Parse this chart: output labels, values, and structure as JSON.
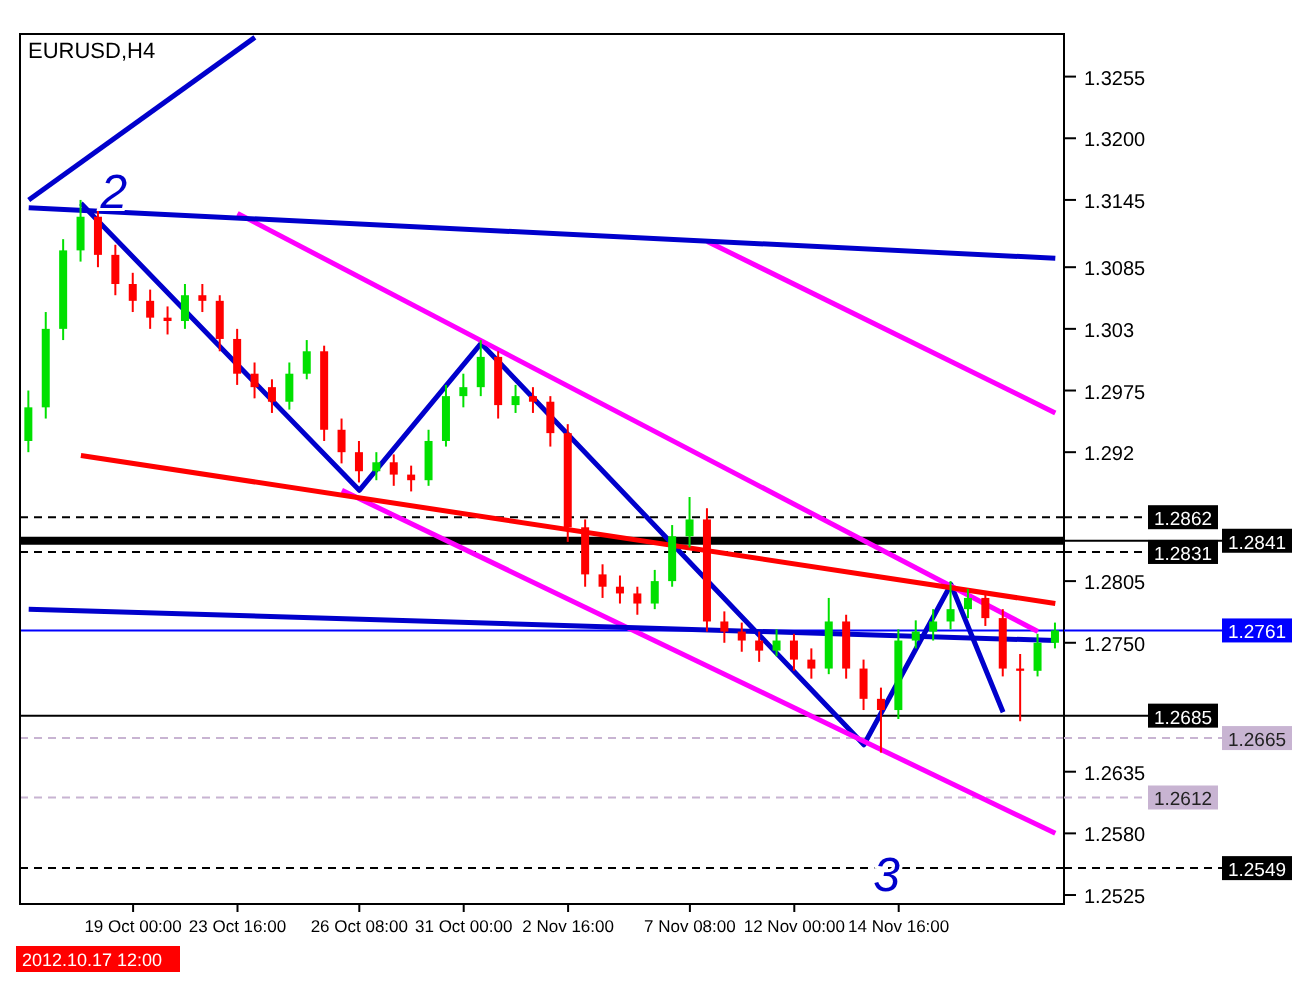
{
  "chart_data": {
    "type": "candlestick",
    "title": "EURUSD,H4",
    "categories": [
      null,
      null,
      null,
      null,
      null,
      null,
      "19 Oct 00:00",
      null,
      null,
      null,
      null,
      null,
      "23 Oct 16:00",
      null,
      null,
      null,
      null,
      null,
      null,
      "26 Oct 08:00",
      null,
      null,
      null,
      null,
      null,
      "31 Oct 00:00",
      null,
      null,
      null,
      null,
      null,
      "2 Nov 16:00",
      null,
      null,
      null,
      null,
      null,
      null,
      "7 Nov 08:00",
      null,
      null,
      null,
      null,
      null,
      "12 Nov 00:00",
      null,
      null,
      null,
      null,
      null,
      "14 Nov 16:00",
      null,
      null,
      null,
      null,
      null,
      null,
      null,
      null,
      null
    ],
    "ohlc": [
      [
        1.293,
        1.2975,
        1.292,
        1.296
      ],
      [
        1.296,
        1.3045,
        1.295,
        1.303
      ],
      [
        1.303,
        1.311,
        1.302,
        1.31
      ],
      [
        1.31,
        1.3145,
        1.309,
        1.313
      ],
      [
        1.313,
        1.3138,
        1.3085,
        1.3096
      ],
      [
        1.3096,
        1.3105,
        1.306,
        1.307
      ],
      [
        1.307,
        1.308,
        1.3045,
        1.3055
      ],
      [
        1.3055,
        1.3065,
        1.303,
        1.304
      ],
      [
        1.304,
        1.305,
        1.3025,
        1.3037
      ],
      [
        1.3037,
        1.307,
        1.303,
        1.306
      ],
      [
        1.306,
        1.307,
        1.3045,
        1.3055
      ],
      [
        1.3055,
        1.306,
        1.301,
        1.3021
      ],
      [
        1.3021,
        1.303,
        1.298,
        1.299
      ],
      [
        1.299,
        1.3,
        1.2968,
        1.2978
      ],
      [
        1.2978,
        1.2985,
        1.2955,
        1.2965
      ],
      [
        1.2965,
        1.3,
        1.2958,
        1.299
      ],
      [
        1.299,
        1.302,
        1.2985,
        1.301
      ],
      [
        1.301,
        1.3015,
        1.293,
        1.294
      ],
      [
        1.294,
        1.295,
        1.291,
        1.292
      ],
      [
        1.292,
        1.293,
        1.2893,
        1.2903
      ],
      [
        1.2903,
        1.292,
        1.2895,
        1.2911
      ],
      [
        1.2911,
        1.2918,
        1.289,
        1.29
      ],
      [
        1.29,
        1.2908,
        1.2885,
        1.2895
      ],
      [
        1.2895,
        1.294,
        1.289,
        1.293
      ],
      [
        1.293,
        1.298,
        1.2925,
        1.297
      ],
      [
        1.297,
        1.299,
        1.296,
        1.2978
      ],
      [
        1.2978,
        1.302,
        1.297,
        1.3005
      ],
      [
        1.3005,
        1.301,
        1.295,
        1.2962
      ],
      [
        1.2962,
        1.298,
        1.2955,
        1.297
      ],
      [
        1.297,
        1.2978,
        1.2955,
        1.2965
      ],
      [
        1.2965,
        1.297,
        1.2925,
        1.2937
      ],
      [
        1.2937,
        1.2945,
        1.284,
        1.2853
      ],
      [
        1.2853,
        1.286,
        1.28,
        1.2811
      ],
      [
        1.2811,
        1.282,
        1.279,
        1.28
      ],
      [
        1.28,
        1.281,
        1.2785,
        1.2794
      ],
      [
        1.2794,
        1.28,
        1.2775,
        1.2785
      ],
      [
        1.2785,
        1.2815,
        1.278,
        1.2805
      ],
      [
        1.2805,
        1.2855,
        1.28,
        1.2845
      ],
      [
        1.2845,
        1.288,
        1.2835,
        1.286
      ],
      [
        1.286,
        1.287,
        1.276,
        1.2769
      ],
      [
        1.2769,
        1.2778,
        1.275,
        1.276
      ],
      [
        1.276,
        1.2768,
        1.2742,
        1.2752
      ],
      [
        1.2752,
        1.276,
        1.2733,
        1.2743
      ],
      [
        1.2743,
        1.2762,
        1.2738,
        1.2752
      ],
      [
        1.2752,
        1.2758,
        1.2725,
        1.2735
      ],
      [
        1.2735,
        1.2745,
        1.2718,
        1.2727
      ],
      [
        1.2727,
        1.279,
        1.2722,
        1.2769
      ],
      [
        1.2769,
        1.2775,
        1.2718,
        1.2727
      ],
      [
        1.2727,
        1.2735,
        1.269,
        1.27
      ],
      [
        1.27,
        1.271,
        1.2652,
        1.269
      ],
      [
        1.269,
        1.2762,
        1.2682,
        1.2752
      ],
      [
        1.2752,
        1.277,
        1.2745,
        1.276
      ],
      [
        1.276,
        1.278,
        1.2752,
        1.2769
      ],
      [
        1.2769,
        1.2805,
        1.2762,
        1.278
      ],
      [
        1.278,
        1.2798,
        1.2772,
        1.279
      ],
      [
        1.279,
        1.2795,
        1.2765,
        1.2772
      ],
      [
        1.2772,
        1.278,
        1.272,
        1.2727
      ],
      [
        1.2727,
        1.274,
        1.268,
        1.2725
      ],
      [
        1.2725,
        1.2758,
        1.272,
        1.275
      ],
      [
        1.275,
        1.2768,
        1.2745,
        1.2761
      ]
    ],
    "colors": [
      "#00e000",
      "#00e000",
      "#00e000",
      "#00e000",
      "#ff0000",
      "#ff0000",
      "#ff0000",
      "#ff0000",
      "#ff0000",
      "#00e000",
      "#ff0000",
      "#ff0000",
      "#ff0000",
      "#ff0000",
      "#ff0000",
      "#00e000",
      "#00e000",
      "#ff0000",
      "#ff0000",
      "#ff0000",
      "#00e000",
      "#ff0000",
      "#ff0000",
      "#00e000",
      "#00e000",
      "#00e000",
      "#00e000",
      "#ff0000",
      "#00e000",
      "#ff0000",
      "#ff0000",
      "#ff0000",
      "#ff0000",
      "#ff0000",
      "#ff0000",
      "#ff0000",
      "#00e000",
      "#00e000",
      "#00e000",
      "#ff0000",
      "#ff0000",
      "#ff0000",
      "#ff0000",
      "#00e000",
      "#ff0000",
      "#ff0000",
      "#00e000",
      "#ff0000",
      "#ff0000",
      "#ff0000",
      "#00e000",
      "#00e000",
      "#00e000",
      "#00e000",
      "#00e000",
      "#ff0000",
      "#ff0000",
      "#ff0000",
      "#00e000",
      "#00e000"
    ],
    "series": [
      {
        "type": "line",
        "color": "#0000cc",
        "values": [
          null,
          null,
          null,
          1.3142,
          null,
          null,
          null,
          null,
          null,
          null,
          null,
          null,
          null,
          null,
          null,
          null,
          null,
          null,
          null,
          1.2886,
          null,
          null,
          null,
          null,
          null,
          null,
          1.3017,
          null,
          null,
          null,
          null,
          null,
          null,
          null,
          null,
          null,
          null,
          null,
          null,
          null,
          null,
          null,
          null,
          null,
          null,
          null,
          null,
          null,
          1.2659,
          null,
          null,
          null,
          null,
          1.2802,
          null,
          null,
          1.2688,
          null,
          null,
          null
        ]
      },
      {
        "type": "line",
        "color": "#ff00ff",
        "values": [
          null,
          null,
          null,
          null,
          null,
          null,
          null,
          null,
          null,
          null,
          null,
          null,
          1.3133,
          null,
          null,
          null,
          null,
          null,
          null,
          null,
          null,
          null,
          null,
          null,
          null,
          null,
          null,
          null,
          null,
          null,
          null,
          null,
          null,
          null,
          null,
          null,
          null,
          null,
          null,
          null,
          null,
          null,
          null,
          null,
          null,
          null,
          null,
          null,
          null,
          null,
          null,
          null,
          null,
          null,
          null,
          null,
          null,
          null,
          1.276,
          null
        ]
      },
      {
        "type": "line",
        "color": "#ff00ff",
        "values": [
          null,
          null,
          null,
          null,
          null,
          null,
          null,
          null,
          null,
          null,
          null,
          null,
          null,
          null,
          null,
          null,
          null,
          null,
          1.2886,
          null,
          null,
          null,
          null,
          null,
          null,
          null,
          null,
          null,
          null,
          null,
          null,
          null,
          null,
          null,
          null,
          null,
          null,
          null,
          null,
          null,
          null,
          null,
          null,
          null,
          null,
          null,
          null,
          null,
          null,
          null,
          null,
          null,
          null,
          null,
          null,
          null,
          null,
          null,
          null,
          1.258
        ]
      },
      {
        "type": "line",
        "color": "#ff00ff",
        "values": [
          null,
          null,
          null,
          null,
          null,
          null,
          null,
          null,
          null,
          null,
          null,
          null,
          null,
          null,
          null,
          null,
          null,
          null,
          null,
          null,
          null,
          null,
          null,
          null,
          null,
          null,
          null,
          null,
          null,
          null,
          null,
          null,
          null,
          null,
          null,
          null,
          null,
          null,
          null,
          1.3108,
          null,
          null,
          null,
          null,
          null,
          null,
          null,
          null,
          null,
          null,
          null,
          null,
          null,
          null,
          null,
          null,
          null,
          null,
          null,
          1.2955
        ]
      },
      {
        "type": "line",
        "color": "#ff0000",
        "values": [
          null,
          null,
          null,
          1.2917,
          null,
          null,
          null,
          null,
          null,
          null,
          null,
          null,
          null,
          null,
          null,
          null,
          null,
          null,
          null,
          null,
          null,
          null,
          null,
          null,
          null,
          null,
          null,
          null,
          null,
          null,
          null,
          null,
          null,
          null,
          null,
          null,
          null,
          null,
          null,
          null,
          null,
          null,
          null,
          null,
          null,
          null,
          null,
          null,
          null,
          null,
          null,
          null,
          null,
          null,
          null,
          null,
          null,
          null,
          null,
          1.2785
        ]
      },
      {
        "type": "line",
        "color": "#0000cc",
        "values": [
          1.3138,
          null,
          null,
          null,
          null,
          null,
          null,
          null,
          null,
          null,
          null,
          null,
          null,
          null,
          null,
          null,
          null,
          null,
          null,
          null,
          null,
          null,
          null,
          null,
          null,
          null,
          null,
          null,
          null,
          null,
          null,
          null,
          null,
          null,
          null,
          null,
          null,
          null,
          null,
          null,
          null,
          null,
          null,
          null,
          null,
          null,
          null,
          null,
          null,
          null,
          null,
          null,
          null,
          null,
          null,
          null,
          null,
          null,
          null,
          1.3093
        ]
      },
      {
        "type": "line",
        "color": "#0000cc",
        "values": [
          1.278,
          null,
          null,
          null,
          null,
          null,
          null,
          null,
          null,
          null,
          null,
          null,
          null,
          null,
          null,
          null,
          null,
          null,
          null,
          null,
          null,
          null,
          null,
          null,
          null,
          null,
          null,
          null,
          null,
          null,
          null,
          null,
          null,
          null,
          null,
          null,
          null,
          null,
          null,
          null,
          null,
          null,
          null,
          null,
          null,
          null,
          null,
          null,
          null,
          null,
          null,
          null,
          null,
          null,
          null,
          null,
          null,
          null,
          null,
          1.2752
        ]
      },
      {
        "type": "line",
        "color": "#0000cc",
        "values": [
          1.3145,
          null,
          null,
          null,
          null,
          null,
          null,
          null,
          null,
          null,
          null,
          null,
          null,
          1.329,
          null,
          null,
          null,
          null,
          null,
          null,
          null,
          null,
          null,
          null,
          null,
          null,
          null,
          null,
          null,
          null,
          null,
          null,
          null,
          null,
          null,
          null,
          null,
          null,
          null,
          null,
          null,
          null,
          null,
          null,
          null,
          null,
          null,
          null,
          null,
          null,
          null,
          null,
          null,
          null,
          null,
          null,
          null,
          null,
          null,
          null
        ]
      }
    ],
    "ylim": [
      1.2517,
      1.3293
    ],
    "yticks": [
      1.3255,
      {
        "value": 1.32,
        "label": "1.3200"
      },
      1.3145,
      1.3085,
      1.303,
      1.2975,
      1.292,
      1.2805,
      {
        "value": 1.275,
        "label": "1.2750"
      },
      1.2635,
      {
        "value": 1.258,
        "label": "1.2580"
      },
      1.2525
    ],
    "ref_lines": [
      {
        "axis": "y",
        "value": 1.2862,
        "label": "1.2862",
        "color": "#000000",
        "line_style": "dashed"
      },
      {
        "axis": "y",
        "value": 1.2841,
        "label": "1.2841",
        "color": "#000000",
        "line_style": "solid"
      },
      {
        "axis": "y",
        "value": 1.2831,
        "label": "1.2831",
        "color": "#000000",
        "line_style": "dashed"
      },
      {
        "axis": "y",
        "value": 1.2761,
        "label": "1.2761",
        "color": "#0000ff",
        "line_style": "solid"
      },
      {
        "axis": "y",
        "value": 1.2685,
        "label": "1.2685",
        "color": "#000000",
        "line_style": "solid"
      },
      {
        "axis": "y",
        "value": 1.2665,
        "label": "1.2665",
        "color": "#c8b4d2",
        "line_style": "dashed"
      },
      {
        "axis": "y",
        "value": 1.2612,
        "label": "1.2612",
        "color": "#c8b4d2",
        "line_style": "dashed"
      },
      {
        "axis": "y",
        "value": 1.2549,
        "label": "1.2549",
        "color": "#000000",
        "line_style": "dashed"
      }
    ],
    "annotations": [
      "2",
      "3",
      "2012.10.17 12:00"
    ],
    "tick_labels": "xy"
  }
}
